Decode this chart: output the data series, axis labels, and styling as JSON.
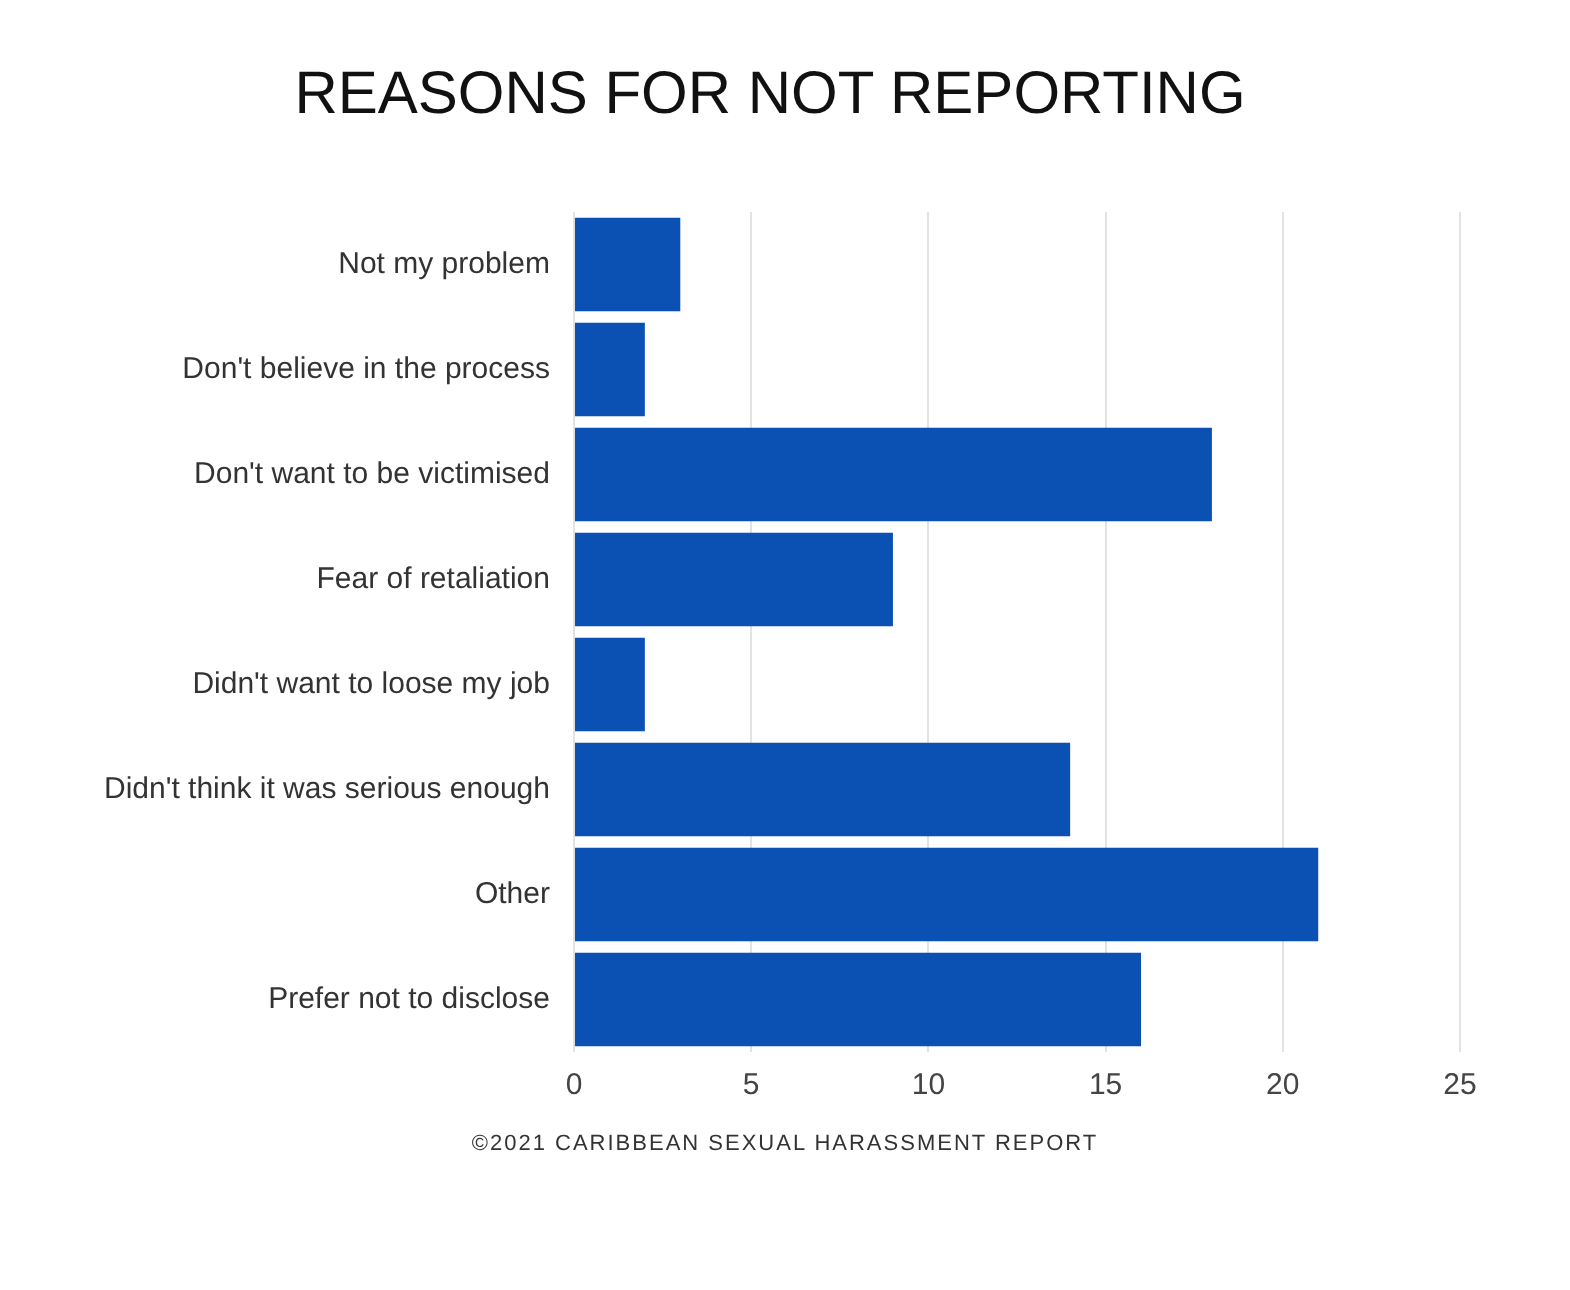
{
  "chart_data": {
    "type": "bar",
    "orientation": "horizontal",
    "title": "REASONS FOR NOT REPORTING",
    "categories": [
      "Not my problem",
      "Don't believe in the process",
      "Don't want to be victimised",
      "Fear of retaliation",
      "Didn't want to loose my job",
      "Didn't think it was serious enough",
      "Other",
      "Prefer not to disclose"
    ],
    "values": [
      3,
      2,
      18,
      9,
      2,
      14,
      21,
      16
    ],
    "color": "#0b50b3",
    "xlim": [
      0,
      25
    ],
    "xticks": [
      0,
      5,
      10,
      15,
      20,
      25
    ],
    "grid": "x",
    "annotations": [
      "©2021 CARIBBEAN SEXUAL HARASSMENT REPORT"
    ]
  }
}
